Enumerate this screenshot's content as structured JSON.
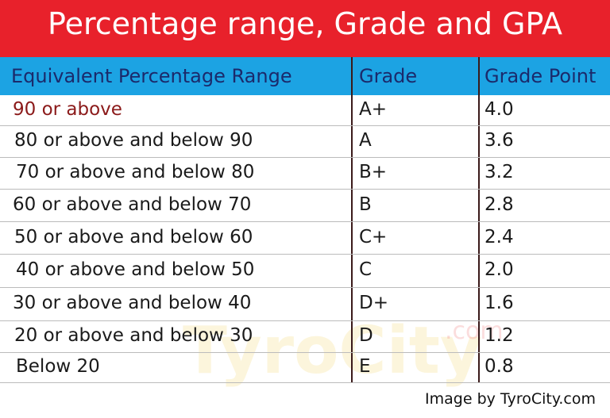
{
  "header": {
    "title": "Percentage range, Grade and GPA"
  },
  "table": {
    "columns": [
      "Equivalent Percentage Range",
      "Grade",
      "Grade Point"
    ],
    "rows": [
      [
        "90 or above",
        "A+",
        "4.0"
      ],
      [
        "80 or above and below 90",
        "A",
        "3.6"
      ],
      [
        "70 or above and below 80",
        "B+",
        "3.2"
      ],
      [
        "60 or above and below 70",
        "B",
        "2.8"
      ],
      [
        "50 or above and below 60",
        "C+",
        "2.4"
      ],
      [
        "40 or above and below 50",
        "C",
        "2.0"
      ],
      [
        "30 or above and below 40",
        "D+",
        "1.6"
      ],
      [
        "20 or above and below 30",
        "D",
        "1.2"
      ],
      [
        "Below 20",
        "E",
        "0.8"
      ]
    ]
  },
  "watermark": {
    "name": "TyroCity",
    "suffix": ".com"
  },
  "footer": {
    "credit": "Image by TyroCity.com"
  }
}
